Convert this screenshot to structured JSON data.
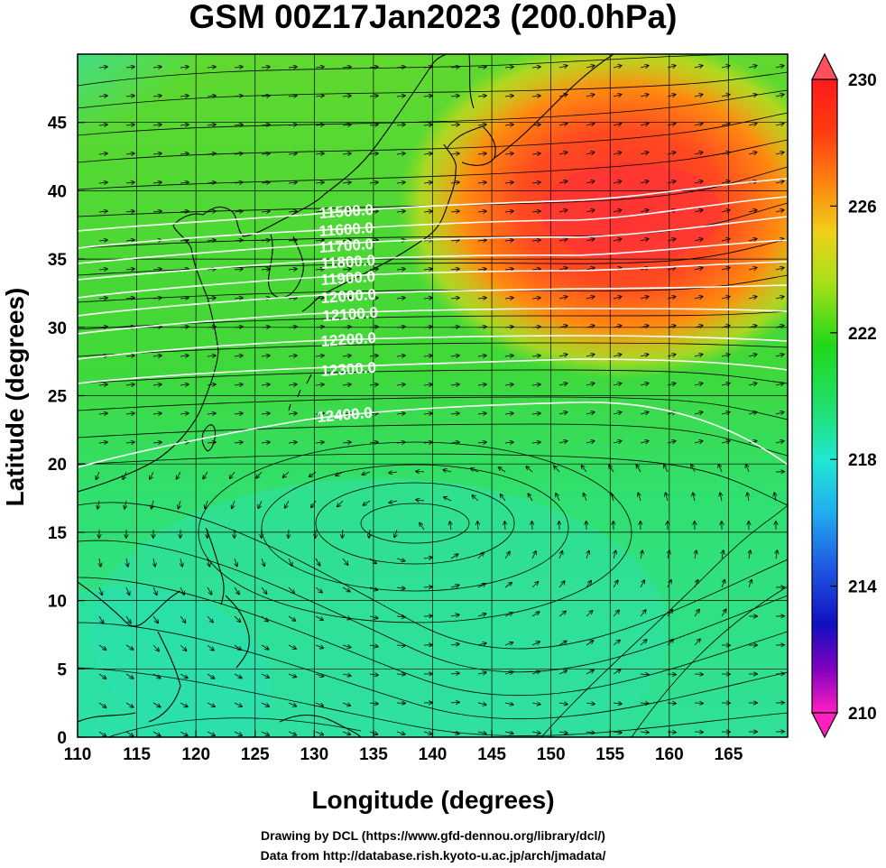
{
  "title": "GSM 00Z17Jan2023 (200.0hPa)",
  "axes": {
    "xlabel": "Longitude (degrees)",
    "ylabel": "Latitude  (degrees)",
    "x_ticks": [
      "110",
      "115",
      "120",
      "125",
      "130",
      "135",
      "140",
      "145",
      "150",
      "155",
      "160",
      "165"
    ],
    "y_ticks": [
      "0",
      "5",
      "10",
      "15",
      "20",
      "25",
      "30",
      "35",
      "40",
      "45"
    ],
    "x_values": [
      110,
      115,
      120,
      125,
      130,
      135,
      140,
      145,
      150,
      155,
      160,
      165
    ],
    "y_values": [
      0,
      5,
      10,
      15,
      20,
      25,
      30,
      35,
      40,
      45
    ],
    "xlim": [
      110,
      170
    ],
    "ylim": [
      0,
      50
    ]
  },
  "colorbar": {
    "ticks": [
      "230",
      "226",
      "222",
      "218",
      "214",
      "210"
    ],
    "tick_values": [
      230,
      226,
      222,
      218,
      214,
      210
    ],
    "range": [
      210,
      230
    ],
    "colors": [
      "#ff1fbf",
      "#7a00c8",
      "#1a1ad0",
      "#1e78f0",
      "#1ee0f0",
      "#20e890",
      "#18d818",
      "#7ed818",
      "#e8e818",
      "#ffb000",
      "#ff5010",
      "#ff2020"
    ]
  },
  "contours": {
    "labels": [
      "11500.0",
      "11600.0",
      "11700.0",
      "11800.0",
      "11900.0",
      "12000.0",
      "12100.0",
      "12200.0",
      "12300.0",
      "12400.0"
    ],
    "line_color": "#ffffff"
  },
  "credits": {
    "line1": "Drawing by DCL (https://www.gfd-dennou.org/library/dcl/)",
    "line2": "Data from http://database.rish.kyoto-u.ac.jp/arch/jmadata/"
  }
}
